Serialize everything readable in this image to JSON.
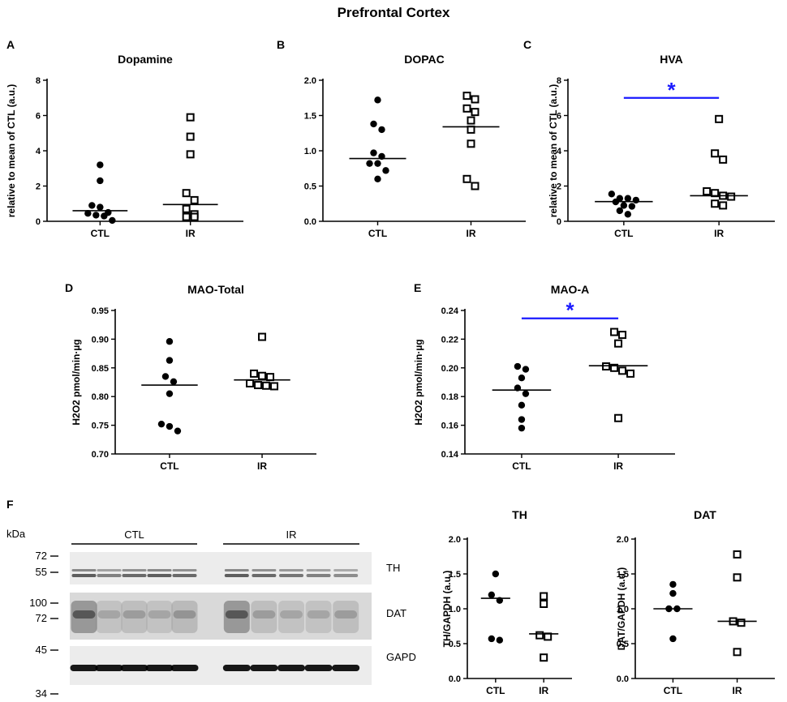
{
  "figure_title": "Prefrontal Cortex",
  "colors": {
    "significance": "#1a1aff",
    "ink": "#000000"
  },
  "chart_data": [
    {
      "panel": "A",
      "type": "scatter",
      "title": "Dopamine",
      "ylabel": "relative to mean of CTL (a.u.)",
      "ylim": [
        0,
        8
      ],
      "yticks": [
        0,
        2,
        4,
        6,
        8
      ],
      "yticklabels": [
        "0",
        "2",
        "4",
        "6",
        "8"
      ],
      "categories": [
        "CTL",
        "IR"
      ],
      "series": [
        {
          "name": "CTL",
          "marker": "filled-circle",
          "values": [
            3.2,
            2.3,
            0.9,
            0.8,
            0.5,
            0.45,
            0.35,
            0.3,
            0.05
          ],
          "mean": 0.6
        },
        {
          "name": "IR",
          "marker": "open-square",
          "values": [
            5.9,
            4.8,
            3.8,
            1.6,
            1.2,
            0.7,
            0.4,
            0.25,
            0.25
          ],
          "mean": 0.95
        }
      ]
    },
    {
      "panel": "B",
      "type": "scatter",
      "title": "DOPAC",
      "ylabel": "",
      "ylim": [
        0,
        2.0
      ],
      "yticks": [
        0,
        0.5,
        1.0,
        1.5,
        2.0
      ],
      "yticklabels": [
        "0.0",
        "0.5",
        "1.0",
        "1.5",
        "2.0"
      ],
      "categories": [
        "CTL",
        "IR"
      ],
      "series": [
        {
          "name": "CTL",
          "marker": "filled-circle",
          "values": [
            1.72,
            1.38,
            1.3,
            0.97,
            0.92,
            0.82,
            0.82,
            0.72,
            0.6
          ],
          "mean": 0.89
        },
        {
          "name": "IR",
          "marker": "open-square",
          "values": [
            1.78,
            1.73,
            1.6,
            1.55,
            1.43,
            1.3,
            1.1,
            0.6,
            0.5
          ],
          "mean": 1.34
        }
      ]
    },
    {
      "panel": "C",
      "type": "scatter",
      "title": "HVA",
      "ylabel": "relative to mean of CTL (a.u.)",
      "ylim": [
        0,
        8
      ],
      "yticks": [
        0,
        2,
        4,
        6,
        8
      ],
      "yticklabels": [
        "0",
        "2",
        "4",
        "6",
        "8"
      ],
      "categories": [
        "CTL",
        "IR"
      ],
      "significance": {
        "label": "*",
        "from": "CTL",
        "to": "IR",
        "y": 7.0
      },
      "series": [
        {
          "name": "CTL",
          "marker": "filled-circle",
          "values": [
            1.55,
            1.3,
            1.3,
            1.2,
            1.1,
            0.9,
            0.85,
            0.6,
            0.4
          ],
          "mean": 1.12
        },
        {
          "name": "IR",
          "marker": "open-square",
          "values": [
            5.8,
            3.85,
            3.5,
            1.7,
            1.6,
            1.45,
            1.4,
            1.0,
            0.9
          ],
          "mean": 1.45
        }
      ]
    },
    {
      "panel": "D",
      "type": "scatter",
      "title": "MAO-Total",
      "ylabel": "H2O2 pmol/min·µg",
      "ylim": [
        0.7,
        0.95
      ],
      "yticks": [
        0.7,
        0.75,
        0.8,
        0.85,
        0.9,
        0.95
      ],
      "yticklabels": [
        "0.70",
        "0.75",
        "0.80",
        "0.85",
        "0.90",
        "0.95"
      ],
      "categories": [
        "CTL",
        "IR"
      ],
      "series": [
        {
          "name": "CTL",
          "marker": "filled-circle",
          "values": [
            0.896,
            0.863,
            0.835,
            0.826,
            0.805,
            0.752,
            0.748,
            0.74
          ],
          "mean": 0.82
        },
        {
          "name": "IR",
          "marker": "open-square",
          "values": [
            0.904,
            0.84,
            0.836,
            0.834,
            0.823,
            0.82,
            0.819,
            0.818
          ],
          "mean": 0.829
        }
      ]
    },
    {
      "panel": "E",
      "type": "scatter",
      "title": "MAO-A",
      "ylabel": "H2O2 pmol/min·µg",
      "ylim": [
        0.14,
        0.24
      ],
      "yticks": [
        0.14,
        0.16,
        0.18,
        0.2,
        0.22,
        0.24
      ],
      "yticklabels": [
        "0.14",
        "0.16",
        "0.18",
        "0.20",
        "0.22",
        "0.24"
      ],
      "categories": [
        "CTL",
        "IR"
      ],
      "significance": {
        "label": "*",
        "from": "CTL",
        "to": "IR",
        "y": 0.2345
      },
      "series": [
        {
          "name": "CTL",
          "marker": "filled-circle",
          "values": [
            0.201,
            0.199,
            0.193,
            0.186,
            0.182,
            0.174,
            0.164,
            0.158
          ],
          "mean": 0.1845
        },
        {
          "name": "IR",
          "marker": "open-square",
          "values": [
            0.225,
            0.223,
            0.217,
            0.201,
            0.2,
            0.198,
            0.196,
            0.165
          ],
          "mean": 0.2015
        }
      ]
    },
    {
      "panel": "",
      "type": "scatter",
      "title": "TH",
      "ylabel": "TH/GAPDH (a.u.)",
      "ylim": [
        0,
        2.0
      ],
      "yticks": [
        0,
        0.5,
        1.0,
        1.5,
        2.0
      ],
      "yticklabels": [
        "0.0",
        "0.5",
        "1.0",
        "1.5",
        "2.0"
      ],
      "categories": [
        "CTL",
        "IR"
      ],
      "series": [
        {
          "name": "CTL",
          "marker": "filled-circle",
          "values": [
            1.5,
            1.2,
            1.12,
            0.57,
            0.55
          ],
          "mean": 1.15
        },
        {
          "name": "IR",
          "marker": "open-square",
          "values": [
            1.18,
            1.07,
            0.62,
            0.6,
            0.3
          ],
          "mean": 0.64
        }
      ]
    },
    {
      "panel": "",
      "type": "scatter",
      "title": "DAT",
      "ylabel": "DAT/GAPDH (a.u.)",
      "ylim": [
        0,
        2.0
      ],
      "yticks": [
        0,
        0.5,
        1.0,
        1.5,
        2.0
      ],
      "yticklabels": [
        "0.0",
        "0.5",
        "1.0",
        "1.5",
        "2.0"
      ],
      "categories": [
        "CTL",
        "IR"
      ],
      "series": [
        {
          "name": "CTL",
          "marker": "filled-circle",
          "values": [
            1.35,
            1.22,
            1.0,
            1.0,
            0.57
          ],
          "mean": 1.0
        },
        {
          "name": "IR",
          "marker": "open-square",
          "values": [
            1.78,
            1.45,
            0.82,
            0.8,
            0.38
          ],
          "mean": 0.82
        }
      ]
    }
  ],
  "blot": {
    "panel": "F",
    "unit_label": "kDa",
    "markers": [
      "72",
      "55",
      "100",
      "72",
      "45",
      "34"
    ],
    "groups": [
      "CTL",
      "IR"
    ],
    "lanes_per_group": 5,
    "rows": [
      {
        "label": "TH",
        "intensity": [
          0.6,
          0.45,
          0.55,
          0.6,
          0.55,
          0.6,
          0.55,
          0.5,
          0.45,
          0.4
        ]
      },
      {
        "label": "DAT",
        "intensity": [
          0.85,
          0.3,
          0.35,
          0.3,
          0.4,
          0.85,
          0.35,
          0.3,
          0.3,
          0.35
        ]
      },
      {
        "label": "GAPD",
        "intensity": [
          0.9,
          0.9,
          0.9,
          0.9,
          0.9,
          0.9,
          0.9,
          0.9,
          0.9,
          0.9
        ]
      }
    ]
  }
}
